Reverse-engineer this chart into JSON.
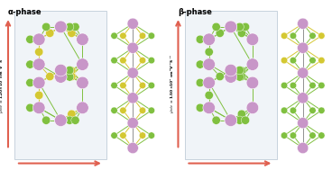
{
  "title_alpha": "α-phase",
  "title_beta": "β-phase",
  "color_Mo": "#c896c8",
  "color_S": "#d4c832",
  "color_Se": "#80c040",
  "color_arrow": "#e06050",
  "bg": "#ffffff",
  "box_edge": "#c0ccd8",
  "box_face": "#f0f4f8"
}
